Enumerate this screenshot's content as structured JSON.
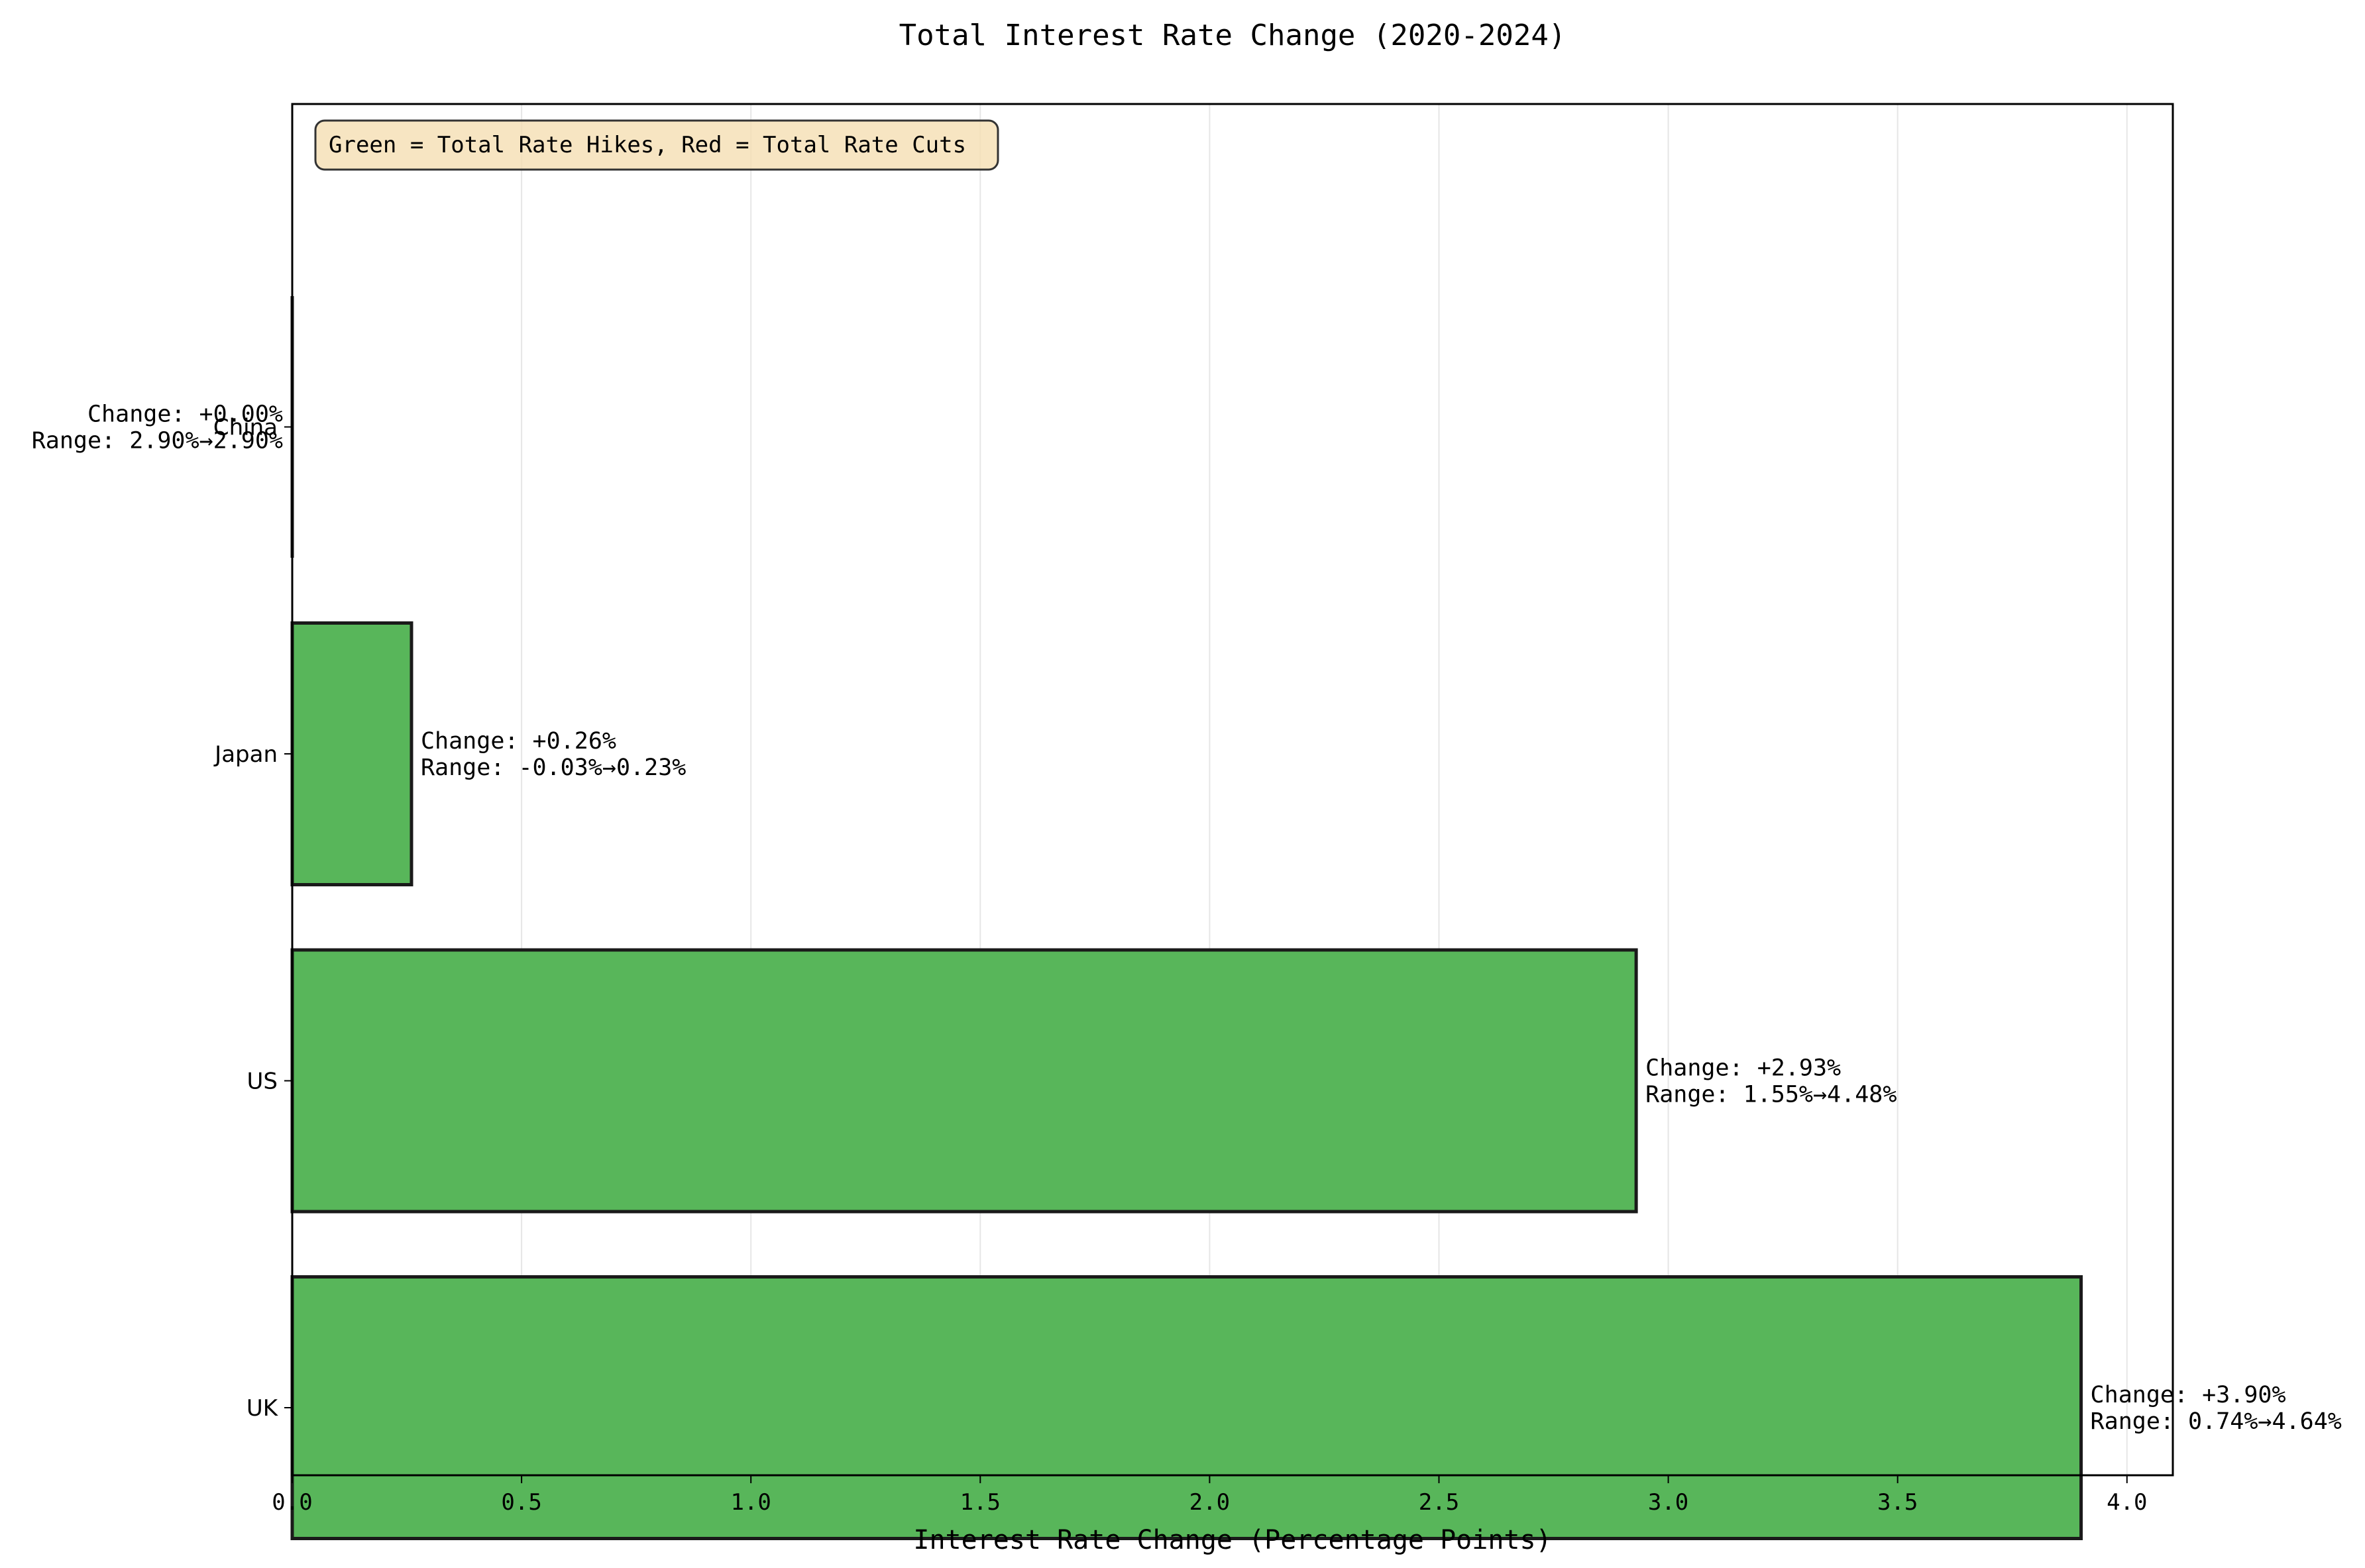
{
  "chart_data": {
    "type": "bar",
    "orientation": "horizontal",
    "title": "Total Interest Rate Change (2020-2024)",
    "xlabel": "Interest Rate Change (Percentage Points)",
    "ylabel": "",
    "xlim": [
      0,
      4.1
    ],
    "xticks": [
      0.0,
      0.5,
      1.0,
      1.5,
      2.0,
      2.5,
      3.0,
      3.5,
      4.0
    ],
    "xtick_labels": [
      "0.0",
      "0.5",
      "1.0",
      "1.5",
      "2.0",
      "2.5",
      "3.0",
      "3.5",
      "4.0"
    ],
    "grid": "vertical, light gray",
    "categories": [
      "China",
      "Japan",
      "US",
      "UK"
    ],
    "values": [
      0.0,
      0.26,
      2.93,
      3.9
    ],
    "data_labels": [
      [
        "Change: +0.00%",
        "Range: 2.90%→2.90%"
      ],
      [
        "Change: +0.26%",
        "Range: -0.03%→0.23%"
      ],
      [
        "Change: +2.93%",
        "Range: 1.55%→4.48%"
      ],
      [
        "Change: +3.90%",
        "Range: 0.74%→4.64%"
      ]
    ],
    "annotation": "Green = Total Rate Hikes, Red = Total Rate Cuts",
    "annotation_placement": "top-left",
    "colors": {
      "hike": "#58b65a",
      "cut": "#d62728",
      "edge": "#1a1a1a",
      "grid": "#e6e6e6",
      "note_bg": "#f5deb3"
    }
  }
}
